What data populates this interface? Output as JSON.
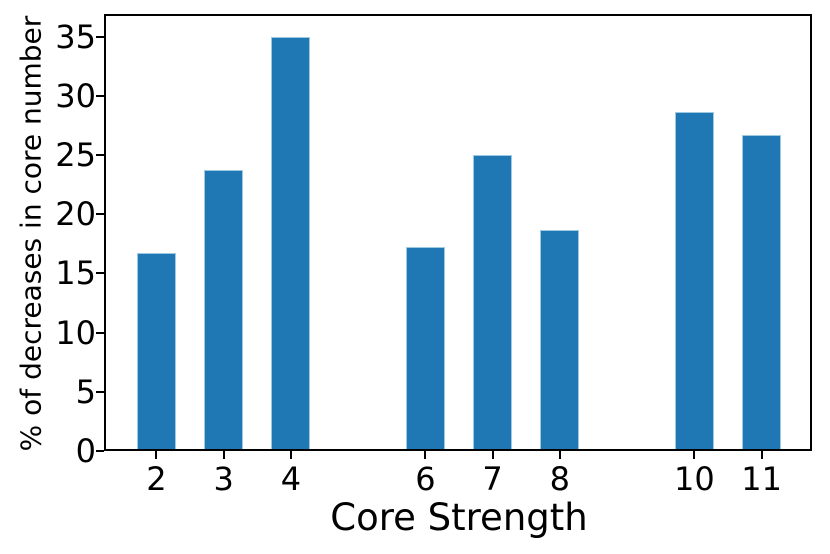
{
  "figure": {
    "background": "#ffffff",
    "axis_color": "#000000",
    "bar_color": "#1f77b4",
    "bar_edge_color": "#9ec9e2"
  },
  "chart_data": {
    "type": "bar",
    "title": "",
    "xlabel": "Core Strength",
    "ylabel": "% of decreases in core number",
    "categories": [
      2,
      3,
      4,
      6,
      7,
      8,
      10,
      11
    ],
    "values": [
      16.7,
      23.7,
      35.0,
      17.2,
      25.0,
      18.7,
      28.6,
      26.7
    ],
    "xticks": [
      2,
      3,
      4,
      6,
      7,
      8,
      10,
      11
    ],
    "yticks": [
      0,
      5,
      10,
      15,
      20,
      25,
      30,
      35
    ],
    "xlim": [
      1.25,
      11.75
    ],
    "ylim": [
      0,
      36.75
    ],
    "bar_width_units": 0.58,
    "grid": false,
    "legend": null
  }
}
